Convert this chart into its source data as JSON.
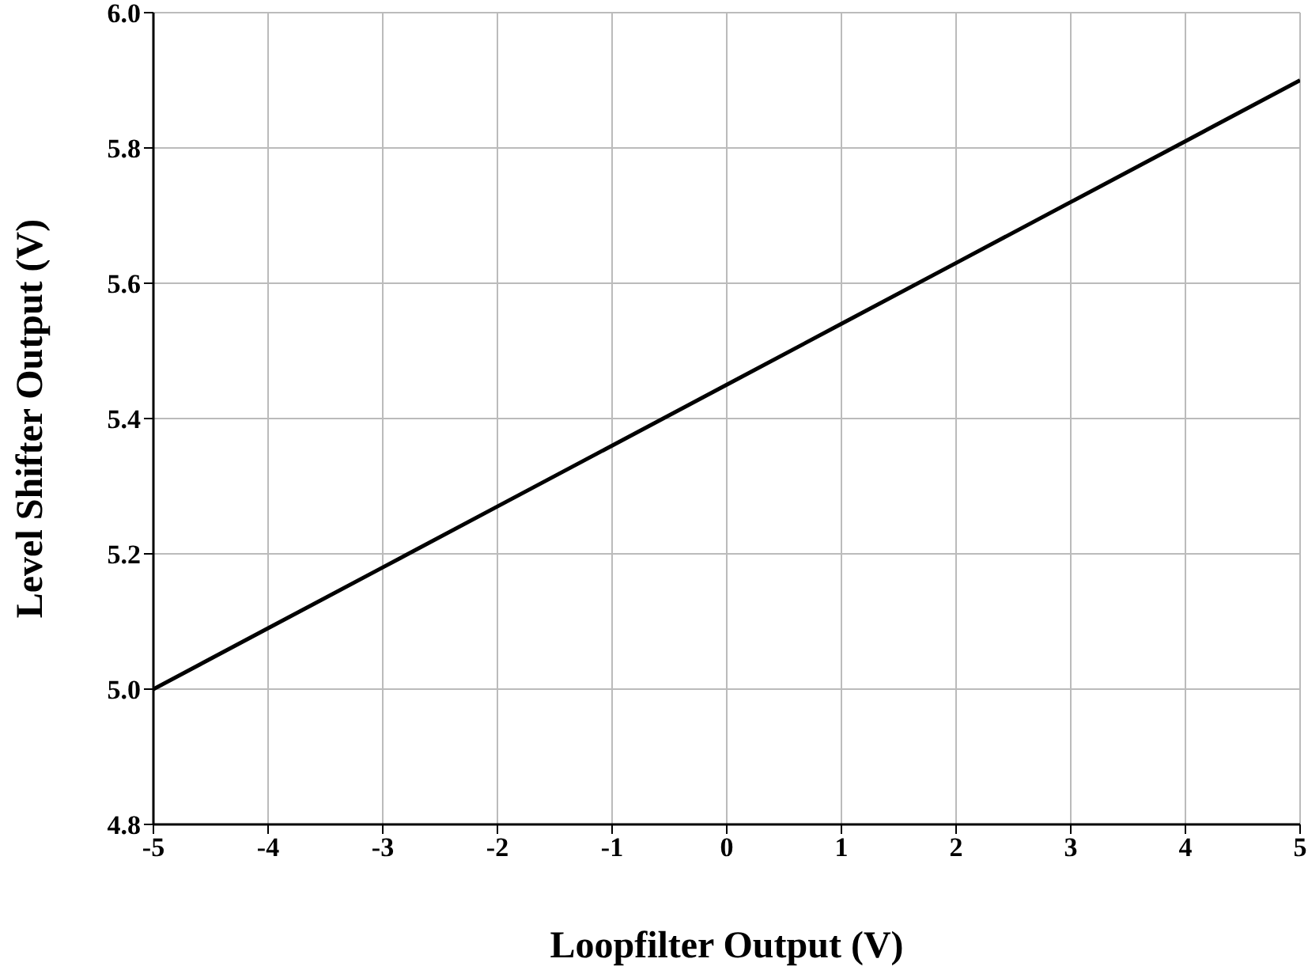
{
  "chart_data": {
    "type": "line",
    "xlabel": "Loopfilter Output (V)",
    "ylabel": "Level Shifter Output (V)",
    "x": [
      -5,
      -4,
      -3,
      -2,
      -1,
      0,
      1,
      2,
      3,
      4,
      5
    ],
    "series": [
      {
        "color": "#000000",
        "values": [
          5.0,
          5.09,
          5.18,
          5.27,
          5.36,
          5.45,
          5.54,
          5.63,
          5.72,
          5.81,
          5.9
        ]
      }
    ],
    "xlim": [
      -5,
      5
    ],
    "xticks": [
      -5,
      -4,
      -3,
      -2,
      -1,
      0,
      1,
      2,
      3,
      4,
      5
    ],
    "ylim": [
      4.8,
      6.0
    ],
    "yticks": [
      4.8,
      {
        "value": 5,
        "label": "5.0"
      },
      5.2,
      5.4,
      5.6,
      5.8,
      {
        "value": 6,
        "label": "6.0"
      }
    ],
    "grid": true,
    "legend": false,
    "marker": "none",
    "line_style": "solid"
  }
}
